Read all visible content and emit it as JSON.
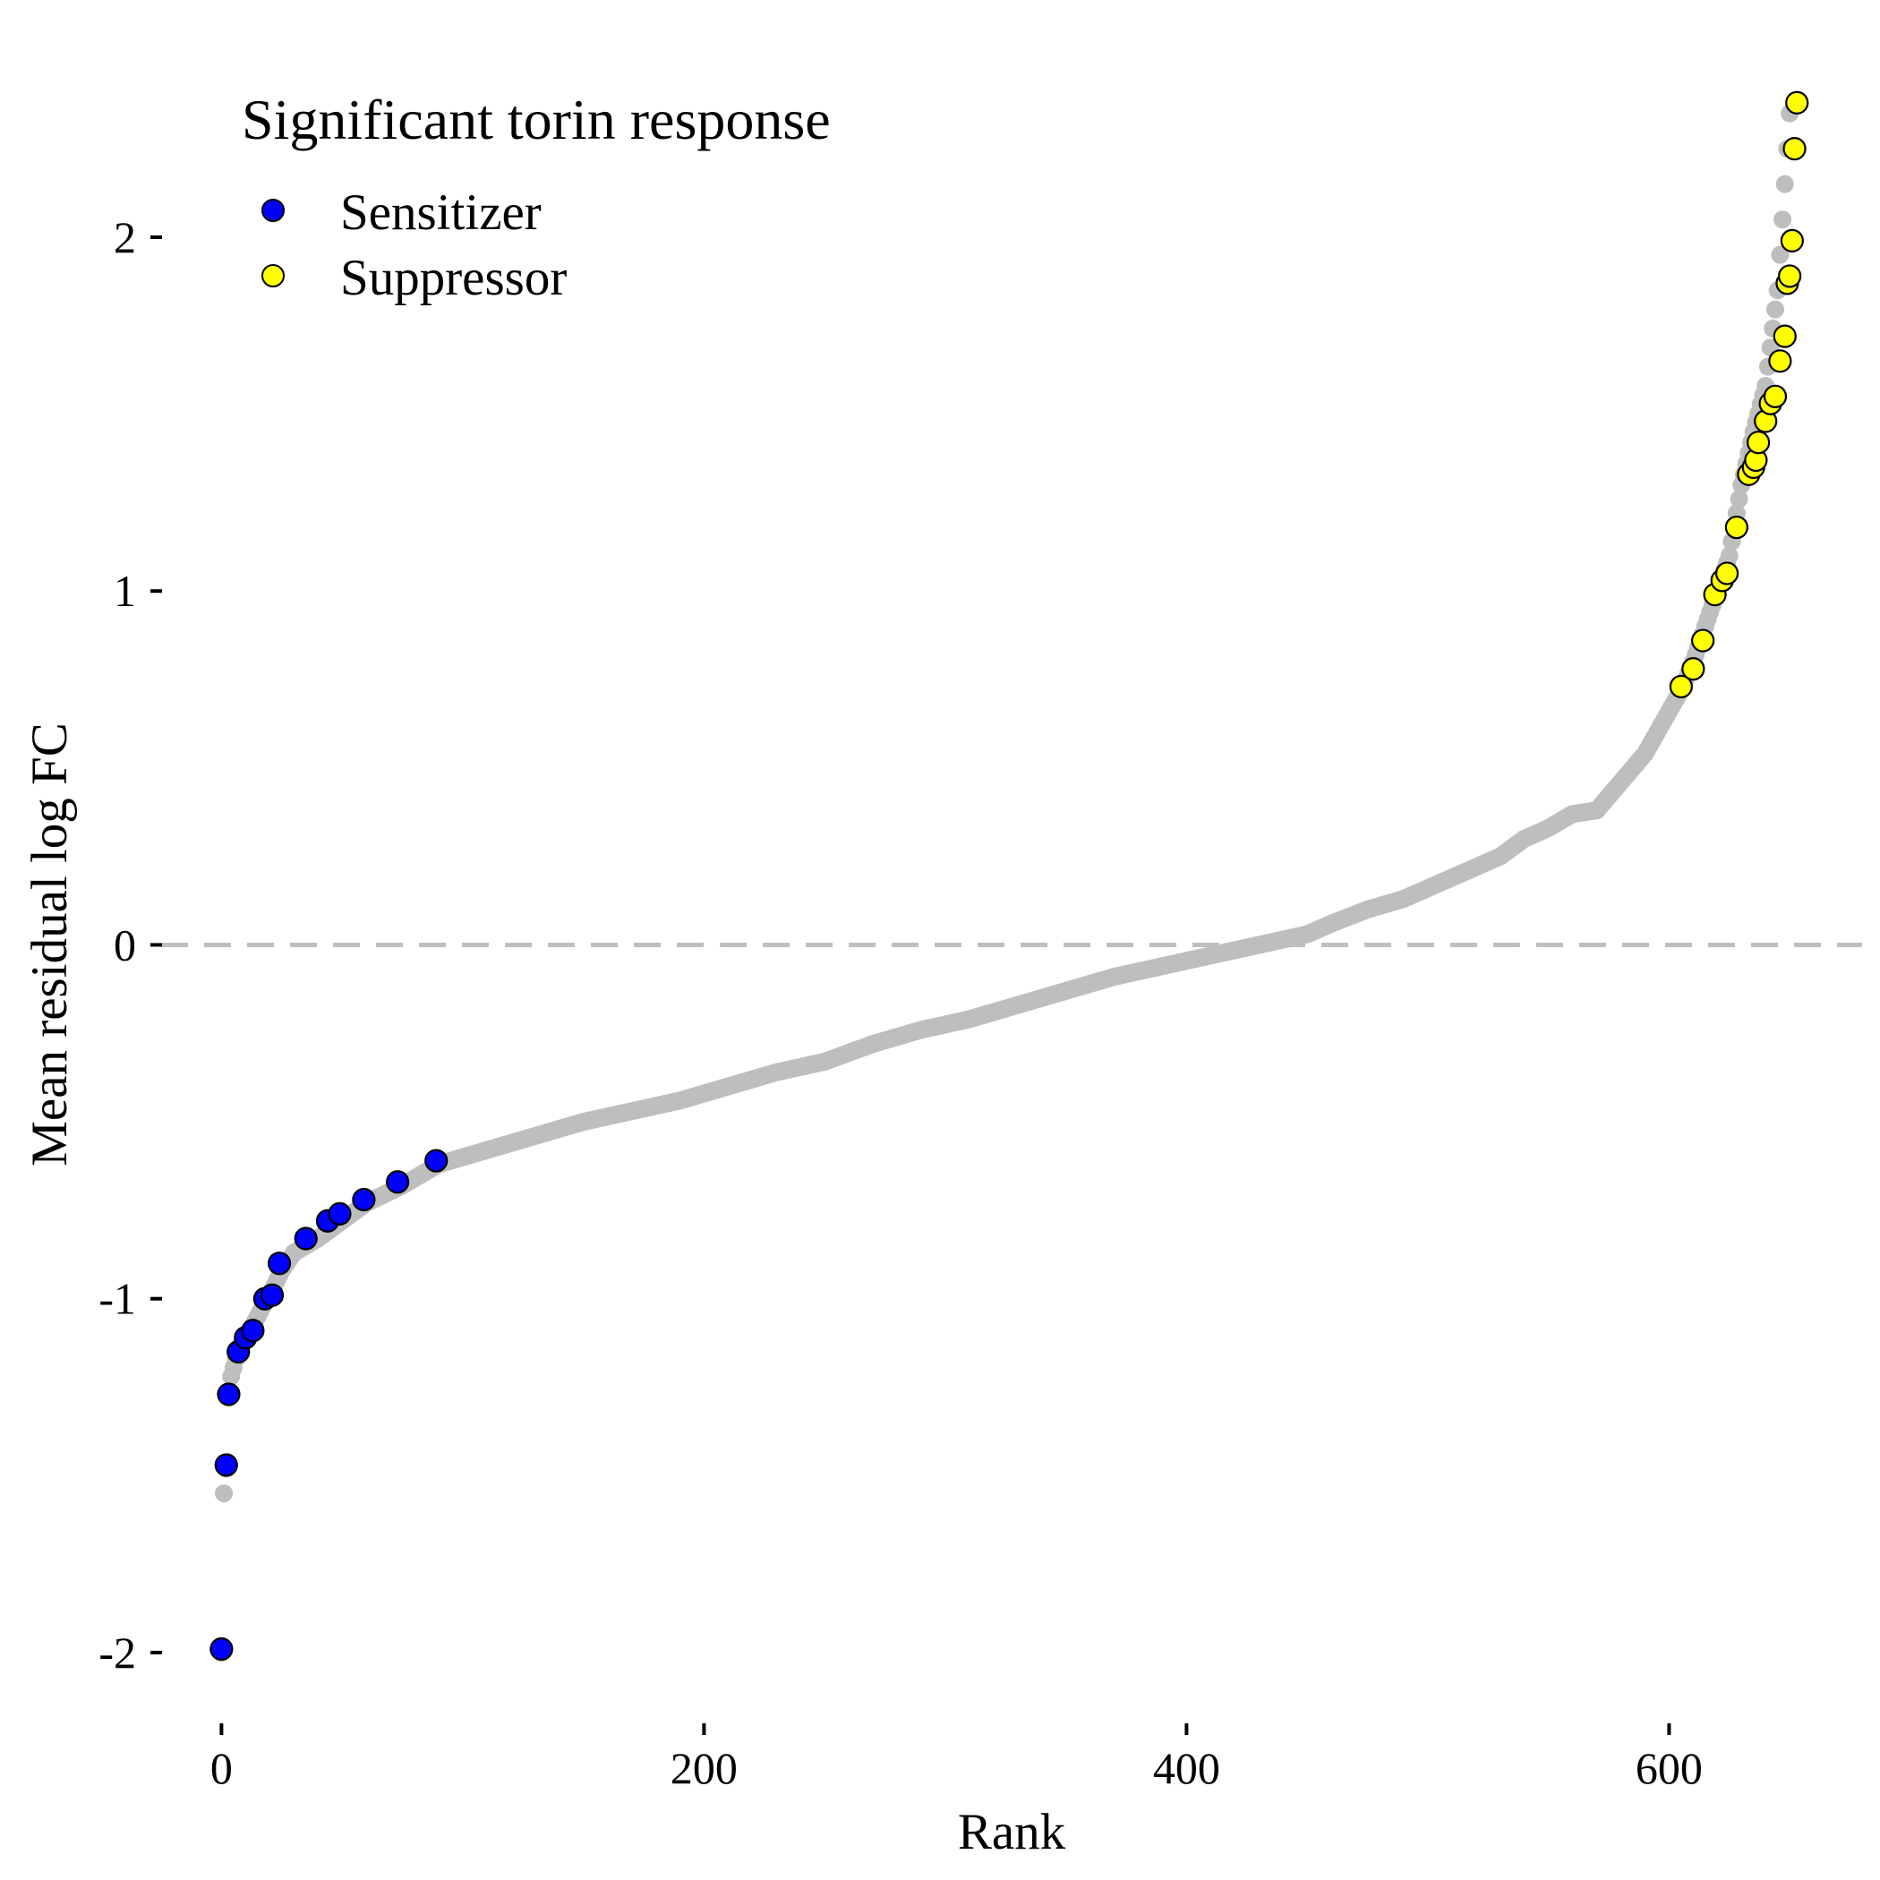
{
  "chart_data": {
    "type": "scatter",
    "title": "",
    "xlabel": "Rank",
    "ylabel": "Mean residual log FC",
    "xlim": [
      -25,
      680
    ],
    "ylim": [
      -2.2,
      2.43
    ],
    "x_ticks": [
      0,
      200,
      400,
      600
    ],
    "x_tick_labels": [
      "0",
      "200",
      "400",
      "600"
    ],
    "y_ticks": [
      -2,
      -1,
      0,
      1,
      2
    ],
    "y_tick_labels": [
      "-2",
      "-1",
      "0",
      "1",
      "2"
    ],
    "grid": false,
    "reference_line": {
      "y": 0,
      "style": "dashed",
      "color": "#bfbfbf"
    },
    "legend": {
      "title": "Significant torin response",
      "position": "top-left",
      "entries": [
        {
          "label": "Sensitizer",
          "color": "#0000ff"
        },
        {
          "label": "Suppressor",
          "color": "#ffff00"
        }
      ]
    },
    "background_series": {
      "name": "",
      "color": "#bebebe",
      "n_points": 651,
      "curve_x": [
        0,
        1,
        2,
        3,
        4,
        6,
        8,
        10,
        12,
        15,
        18,
        20,
        25,
        30,
        40,
        50,
        60,
        75,
        90,
        100,
        120,
        135,
        150,
        170,
        190,
        210,
        230,
        250,
        270,
        290,
        310,
        330,
        350,
        370,
        390,
        410,
        430,
        450,
        460,
        475,
        490,
        500,
        520,
        530,
        540,
        550,
        560,
        570,
        575,
        580,
        590,
        595,
        600,
        605,
        610,
        615,
        620,
        625,
        630,
        635,
        640,
        645,
        650
      ],
      "curve_y": [
        -2.0,
        -1.55,
        -1.48,
        -1.28,
        -1.22,
        -1.17,
        -1.13,
        -1.11,
        -1.09,
        -1.05,
        -1.01,
        -0.99,
        -0.92,
        -0.87,
        -0.83,
        -0.78,
        -0.73,
        -0.68,
        -0.62,
        -0.6,
        -0.56,
        -0.53,
        -0.5,
        -0.47,
        -0.44,
        -0.4,
        -0.36,
        -0.33,
        -0.28,
        -0.24,
        -0.21,
        -0.17,
        -0.13,
        -0.09,
        -0.06,
        -0.03,
        0.0,
        0.03,
        0.06,
        0.1,
        0.13,
        0.16,
        0.22,
        0.25,
        0.3,
        0.33,
        0.37,
        0.38,
        0.42,
        0.46,
        0.54,
        0.6,
        0.66,
        0.72,
        0.8,
        0.9,
        1.0,
        1.1,
        1.3,
        1.45,
        1.58,
        1.85,
        2.35
      ]
    },
    "series": [
      {
        "name": "Sensitizer",
        "color": "#0000ff",
        "x": [
          0,
          2,
          3,
          7,
          10,
          13,
          18,
          21,
          24,
          35,
          44,
          49,
          59,
          73,
          89
        ],
        "y": [
          -1.99,
          -1.47,
          -1.27,
          -1.15,
          -1.11,
          -1.09,
          -1.0,
          -0.99,
          -0.9,
          -0.83,
          -0.78,
          -0.76,
          -0.72,
          -0.67,
          -0.61
        ]
      },
      {
        "name": "Suppressor",
        "color": "#ffff00",
        "x": [
          605,
          610,
          614,
          619,
          622,
          624,
          628,
          633,
          635,
          636,
          637,
          640,
          642,
          644,
          646,
          648,
          649,
          650,
          651,
          652,
          653
        ],
        "y": [
          0.73,
          0.78,
          0.86,
          0.99,
          1.03,
          1.05,
          1.18,
          1.33,
          1.35,
          1.37,
          1.42,
          1.48,
          1.53,
          1.55,
          1.65,
          1.72,
          1.87,
          1.89,
          1.99,
          2.25,
          2.38
        ]
      }
    ]
  }
}
